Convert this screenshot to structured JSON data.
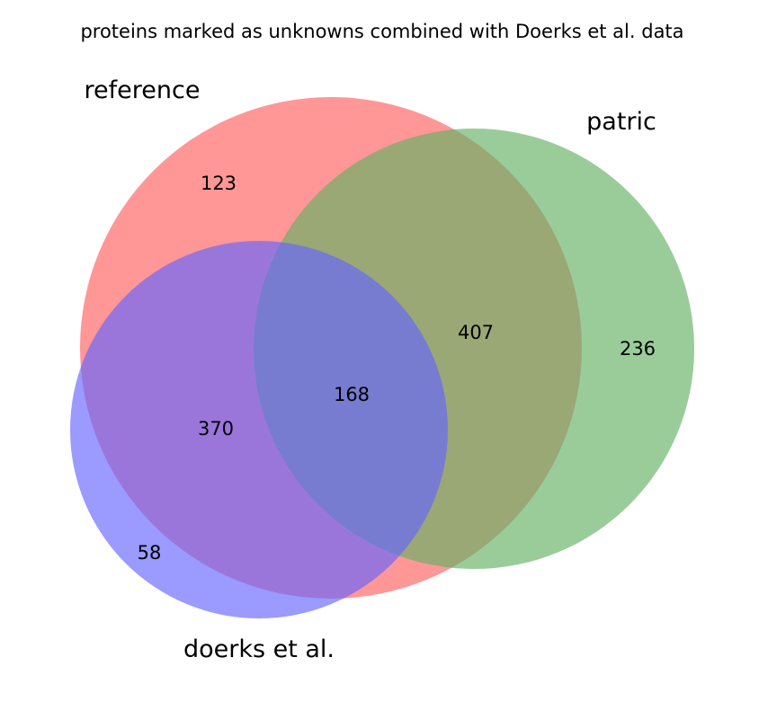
{
  "title": "proteins marked as unknowns combined with Doerks et al. data",
  "sets": [
    {
      "key": "reference",
      "label": "reference",
      "color": "#ff6666"
    },
    {
      "key": "patric",
      "label": "patric",
      "color": "#66b266"
    },
    {
      "key": "doerks",
      "label": "doerks et al.",
      "color": "#6666ff"
    }
  ],
  "regions": [
    {
      "sets": [
        "reference"
      ],
      "value": "123"
    },
    {
      "sets": [
        "patric"
      ],
      "value": "236"
    },
    {
      "sets": [
        "doerks"
      ],
      "value": "58"
    },
    {
      "sets": [
        "reference",
        "patric"
      ],
      "value": "407"
    },
    {
      "sets": [
        "reference",
        "doerks"
      ],
      "value": "370"
    },
    {
      "sets": [
        "reference",
        "patric",
        "doerks"
      ],
      "value": "168"
    }
  ]
}
